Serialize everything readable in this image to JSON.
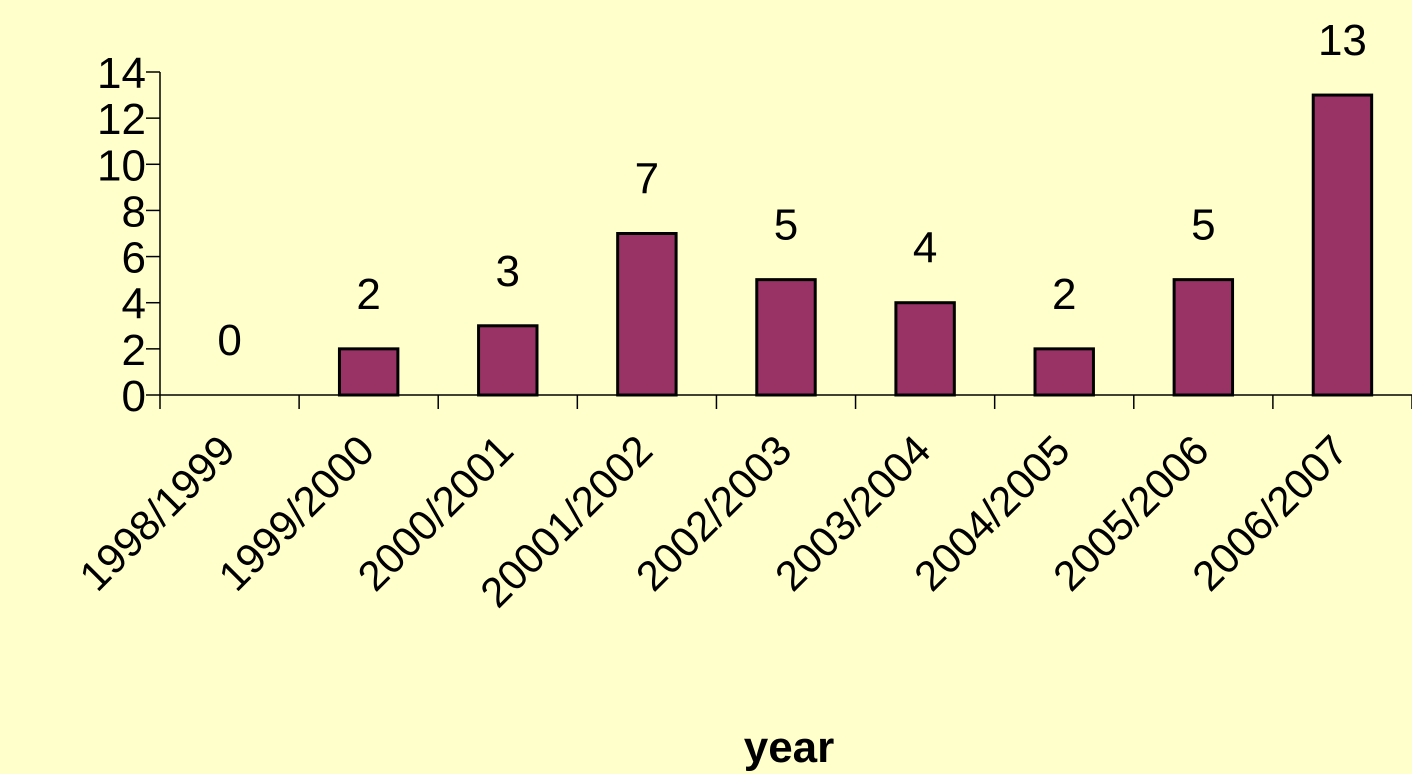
{
  "chart_data": {
    "type": "bar",
    "title": "",
    "xlabel": "year",
    "ylabel": "",
    "categories": [
      "1998/1999",
      "1999/2000",
      "2000/2001",
      "20001/2002",
      "2002/2003",
      "2003/2004",
      "2004/2005",
      "2005/2006",
      "2006/2007"
    ],
    "values": [
      0,
      2,
      3,
      7,
      5,
      4,
      2,
      5,
      13
    ],
    "ylim": [
      0,
      14
    ],
    "yticks": [
      0,
      2,
      4,
      6,
      8,
      10,
      12,
      14
    ],
    "grid": false,
    "legend": "none",
    "colors": {
      "background": "#FFFFCC",
      "bar_fill": "#993366",
      "bar_stroke": "#000000"
    }
  }
}
